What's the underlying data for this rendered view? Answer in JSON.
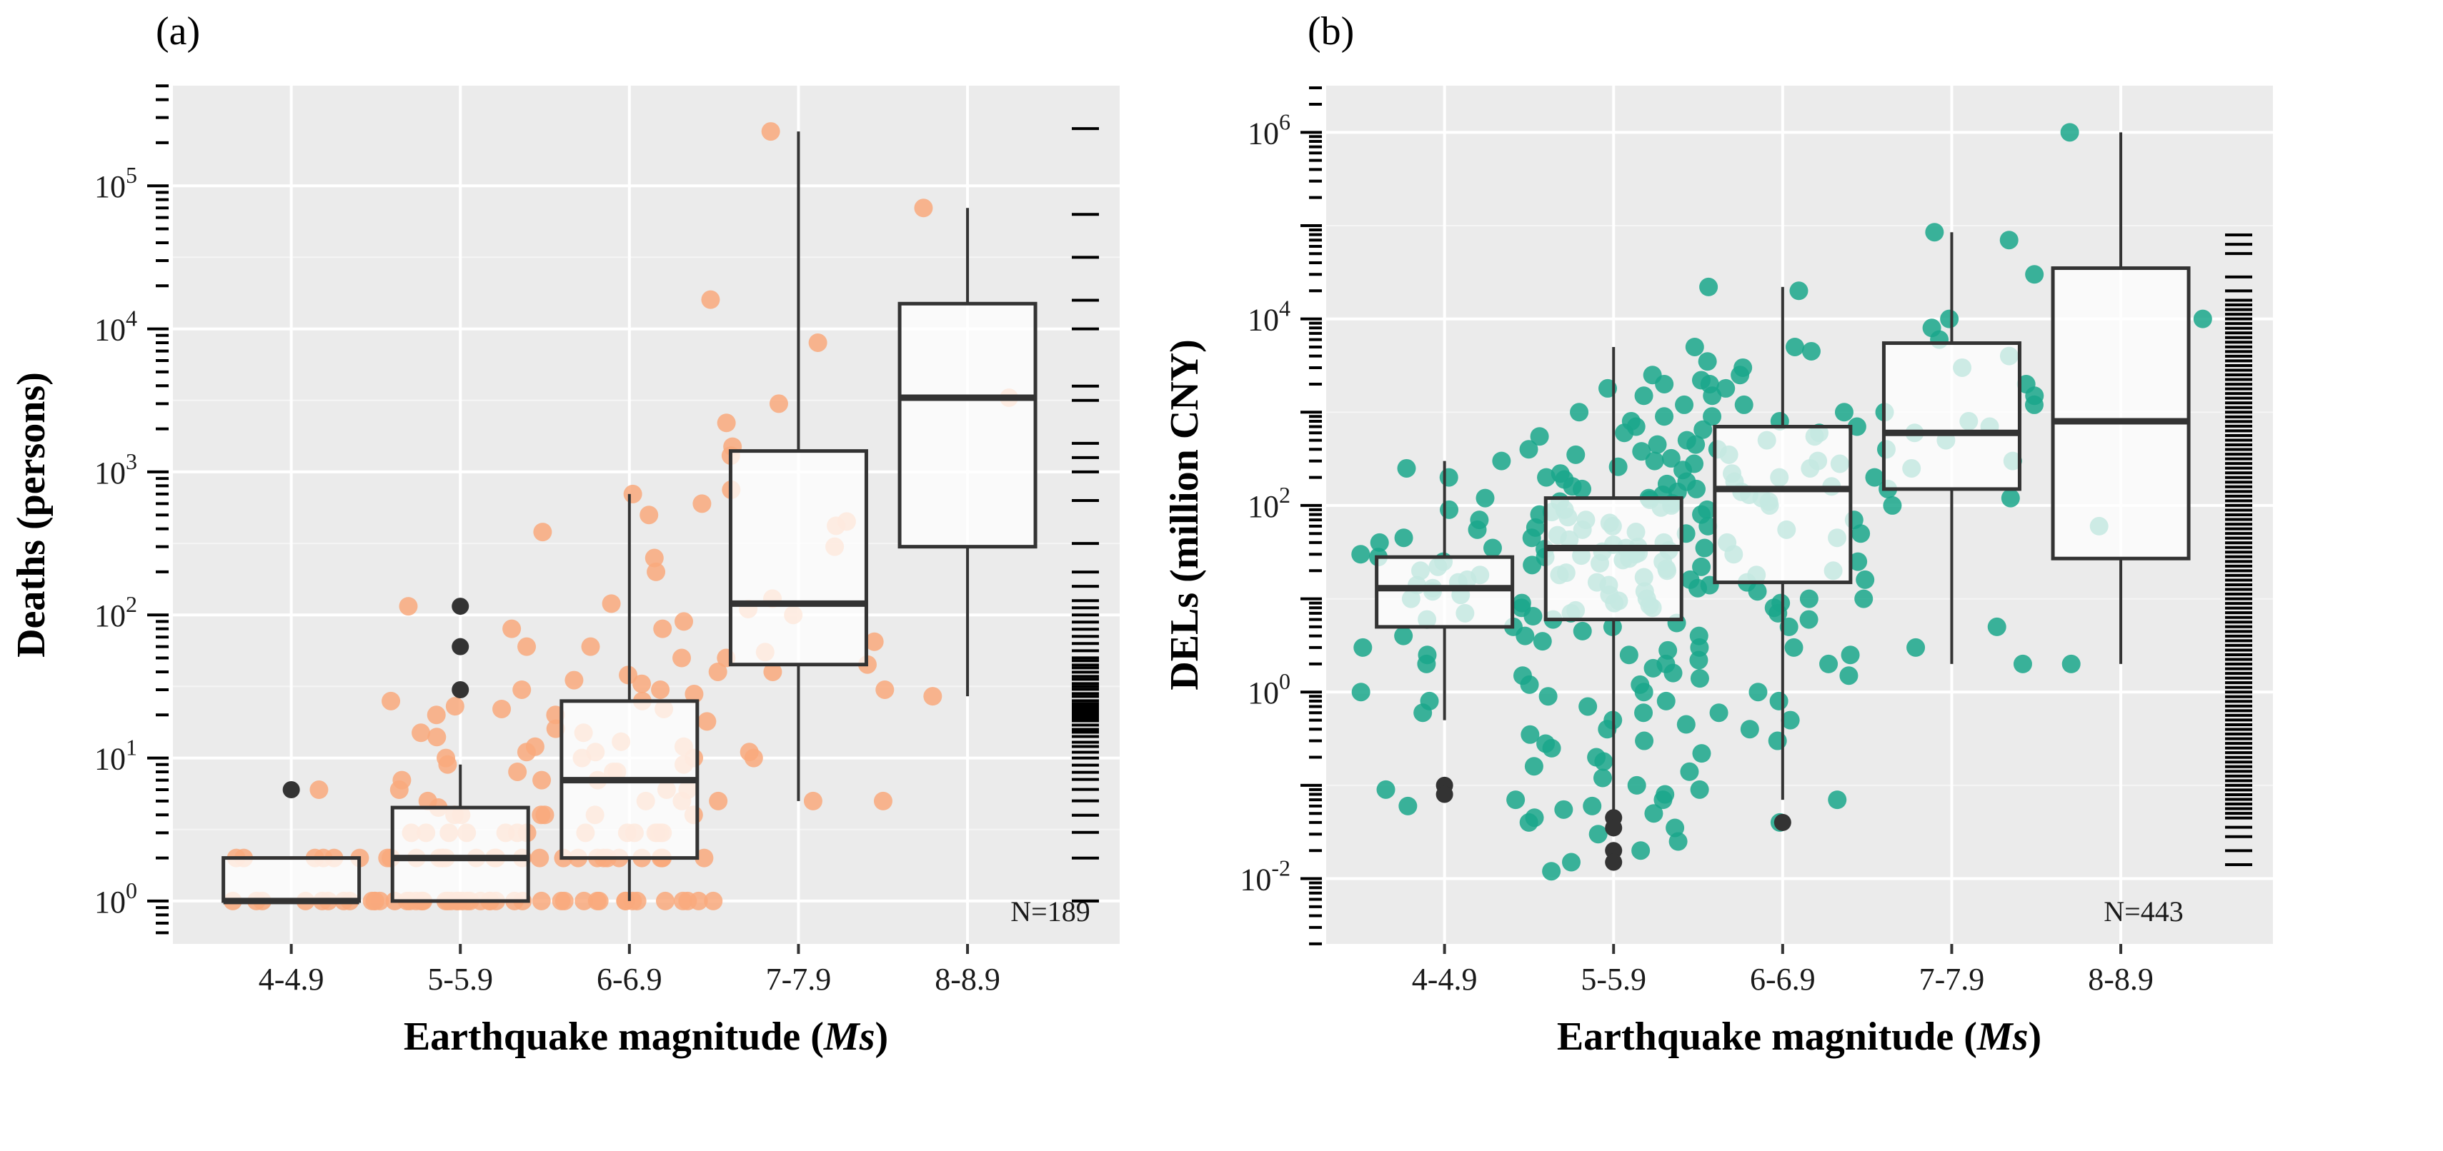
{
  "chart_data": [
    {
      "type": "box",
      "panel_label": "(a)",
      "ylabel": "Deaths (persons)",
      "xlabel_main": "Earthquake magnitude (",
      "xlabel_italic": "Ms",
      "xlabel_close": ")",
      "yscale": "log10",
      "ylim_log10": [
        -0.3,
        5.7
      ],
      "y_ticks": [
        {
          "base": "10",
          "exp": "0",
          "log": 0
        },
        {
          "base": "10",
          "exp": "1",
          "log": 1
        },
        {
          "base": "10",
          "exp": "2",
          "log": 2
        },
        {
          "base": "10",
          "exp": "3",
          "log": 3
        },
        {
          "base": "10",
          "exp": "4",
          "log": 4
        },
        {
          "base": "10",
          "exp": "5",
          "log": 5
        }
      ],
      "categories": [
        "4-4.9",
        "5-5.9",
        "6-6.9",
        "7-7.9",
        "8-8.9"
      ],
      "n_label": "N=189",
      "point_color": "#f9a97d",
      "outlier_color": "#333333",
      "boxes": [
        {
          "q1": 1,
          "median": 1,
          "q3": 2,
          "whisker_low": 1,
          "whisker_high": 2,
          "outliers": [
            6
          ]
        },
        {
          "q1": 1,
          "median": 2,
          "q3": 4.5,
          "whisker_low": 1,
          "whisker_high": 9,
          "outliers": [
            30,
            60,
            115
          ]
        },
        {
          "q1": 2,
          "median": 7,
          "q3": 25,
          "whisker_low": 1,
          "whisker_high": 700,
          "outliers": []
        },
        {
          "q1": 45,
          "median": 120,
          "q3": 1400,
          "whisker_low": 5,
          "whisker_high": 240000,
          "outliers": []
        },
        {
          "q1": 300,
          "median": 3300,
          "q3": 15000,
          "whisker_low": 27,
          "whisker_high": 70000,
          "outliers": []
        }
      ],
      "points": [
        [
          6,
          1,
          2,
          1,
          2,
          1,
          1,
          2,
          1,
          1,
          2,
          1,
          1,
          2,
          1,
          2
        ],
        [
          115,
          80,
          60,
          30,
          25,
          23,
          22,
          20,
          15,
          14,
          12,
          11,
          10,
          9,
          8,
          7,
          6,
          5,
          4.5,
          4,
          4,
          4,
          3,
          3,
          3,
          3,
          3,
          3,
          3,
          2,
          2,
          2,
          2,
          2,
          2,
          2,
          2,
          2,
          2,
          2,
          2,
          2,
          1,
          1,
          1,
          1,
          1,
          1,
          1,
          1,
          1,
          1,
          1,
          1,
          1,
          1,
          1,
          1,
          1,
          1,
          1,
          1,
          1,
          1,
          1,
          1,
          1
        ],
        [
          700,
          600,
          500,
          380,
          250,
          200,
          120,
          90,
          80,
          60,
          50,
          40,
          38,
          35,
          33,
          30,
          28,
          25,
          22,
          20,
          18,
          16,
          15,
          13,
          12,
          11,
          10,
          10,
          9,
          8,
          8,
          7,
          7,
          6,
          6,
          5,
          5,
          5,
          4,
          4,
          4,
          3,
          3,
          3,
          3,
          3,
          3,
          3,
          2,
          2,
          2,
          2,
          2,
          2,
          2,
          2,
          2,
          2,
          2,
          1,
          1,
          1,
          1,
          1,
          1,
          1,
          1,
          1,
          1,
          1,
          1,
          1,
          1
        ],
        [
          240000,
          16000,
          8000,
          3000,
          2200,
          1500,
          1300,
          750,
          450,
          420,
          300,
          130,
          110,
          100,
          65,
          55,
          50,
          45,
          40,
          30,
          11,
          10,
          5,
          5
        ],
        [
          70000,
          3300,
          27
        ]
      ],
      "rug_log10": [
        0.0,
        0.0,
        0.3,
        0.48,
        0.6,
        0.7,
        0.78,
        0.85,
        0.9,
        0.95,
        1.0,
        1.04,
        1.08,
        1.11,
        1.15,
        1.18,
        1.2,
        1.23,
        1.26,
        1.28,
        1.3,
        1.32,
        1.34,
        1.36,
        1.38,
        1.4,
        1.43,
        1.45,
        1.48,
        1.5,
        1.52,
        1.55,
        1.57,
        1.6,
        1.63,
        1.65,
        1.68,
        1.7,
        1.75,
        1.8,
        1.85,
        1.9,
        1.95,
        2.0,
        2.05,
        2.1,
        2.2,
        2.3,
        2.5,
        2.8,
        3.0,
        3.1,
        3.2,
        3.5,
        3.6,
        4.0,
        4.2,
        4.5,
        4.8,
        5.4
      ]
    },
    {
      "type": "box",
      "panel_label": "(b)",
      "ylabel": "DELs (million CNY)",
      "xlabel_main": "Earthquake magnitude (",
      "xlabel_italic": "Ms",
      "xlabel_close": ")",
      "yscale": "log10",
      "ylim_log10": [
        -2.7,
        6.5
      ],
      "y_ticks": [
        {
          "base": "10",
          "exp": "-2",
          "log": -2
        },
        {
          "base": "10",
          "exp": "0",
          "log": 0
        },
        {
          "base": "10",
          "exp": "2",
          "log": 2
        },
        {
          "base": "10",
          "exp": "4",
          "log": 4
        },
        {
          "base": "10",
          "exp": "6",
          "log": 6
        }
      ],
      "categories": [
        "4-4.9",
        "5-5.9",
        "6-6.9",
        "7-7.9",
        "8-8.9"
      ],
      "n_label": "N=443",
      "point_color": "#1aa78b",
      "outlier_color": "#333333",
      "boxes": [
        {
          "q1": 5,
          "median": 13,
          "q3": 28,
          "whisker_low": 0.5,
          "whisker_high": 300,
          "outliers": [
            0.1,
            0.08
          ]
        },
        {
          "q1": 6,
          "median": 35,
          "q3": 120,
          "whisker_low": 0.055,
          "whisker_high": 5000,
          "outliers": [
            0.045,
            0.035,
            0.02,
            0.015
          ]
        },
        {
          "q1": 15,
          "median": 150,
          "q3": 700,
          "whisker_low": 0.07,
          "whisker_high": 22000,
          "outliers": [
            0.04
          ]
        },
        {
          "q1": 150,
          "median": 600,
          "q3": 5500,
          "whisker_low": 2,
          "whisker_high": 85000,
          "outliers": []
        },
        {
          "q1": 27,
          "median": 800,
          "q3": 35000,
          "whisker_low": 2,
          "whisker_high": 1000000,
          "outliers": []
        }
      ],
      "points": [
        [
          300,
          250,
          200,
          120,
          90,
          70,
          55,
          45,
          40,
          35,
          30,
          28,
          25,
          22,
          20,
          18,
          16,
          15,
          14,
          13,
          12,
          11,
          10,
          9,
          8,
          7,
          6,
          5,
          4,
          3,
          2.5,
          2,
          1.5,
          1.2,
          1,
          0.8,
          0.6,
          0.09,
          0.07,
          0.06
        ],
        [
          5000,
          2500,
          2200,
          2000,
          1800,
          1500,
          1200,
          1000,
          900,
          800,
          700,
          600,
          550,
          500,
          450,
          400,
          380,
          350,
          320,
          300,
          280,
          260,
          240,
          220,
          200,
          190,
          180,
          170,
          160,
          150,
          140,
          130,
          120,
          115,
          110,
          105,
          100,
          95,
          90,
          85,
          80,
          75,
          70,
          65,
          60,
          58,
          55,
          52,
          50,
          48,
          45,
          43,
          40,
          38,
          36,
          35,
          34,
          33,
          32,
          31,
          30,
          29,
          28,
          27,
          26,
          25,
          24,
          23,
          22,
          21,
          20,
          19,
          18,
          17,
          16,
          15,
          14,
          13,
          12,
          11,
          10,
          9.5,
          9,
          8.5,
          8,
          7.5,
          7,
          6.5,
          6,
          5.5,
          5,
          4.5,
          4,
          3.5,
          3,
          2.8,
          2.5,
          2.2,
          2,
          1.8,
          1.6,
          1.4,
          1.2,
          1,
          0.9,
          0.8,
          0.7,
          0.6,
          0.5,
          0.45,
          0.4,
          0.35,
          0.3,
          0.28,
          0.25,
          0.22,
          0.2,
          0.18,
          0.16,
          0.14,
          0.12,
          0.1,
          0.09,
          0.08,
          0.07,
          0.06,
          0.055,
          0.05,
          0.045,
          0.04,
          0.035,
          0.03,
          0.025,
          0.02,
          0.015,
          0.012
        ],
        [
          22000,
          20000,
          5000,
          4500,
          3500,
          3000,
          2500,
          2000,
          1800,
          1500,
          1200,
          1000,
          900,
          800,
          700,
          650,
          600,
          550,
          500,
          450,
          400,
          350,
          300,
          280,
          250,
          220,
          200,
          180,
          160,
          150,
          140,
          130,
          120,
          110,
          100,
          90,
          80,
          70,
          60,
          55,
          50,
          45,
          40,
          35,
          30,
          25,
          20,
          18,
          16,
          15,
          14,
          12,
          10,
          9,
          8,
          7,
          6,
          5,
          4,
          3,
          2.5,
          2,
          1.5,
          1,
          0.8,
          0.6,
          0.5,
          0.4,
          0.3,
          0.07,
          0.04
        ],
        [
          85000,
          70000,
          30000,
          10000,
          8000,
          6000,
          4000,
          3000,
          2000,
          1500,
          1200,
          1000,
          800,
          700,
          600,
          500,
          400,
          300,
          250,
          200,
          150,
          120,
          100,
          10,
          5,
          3,
          2
        ],
        [
          1000000,
          10000,
          60,
          2
        ]
      ],
      "rug_log10": [
        -1.85,
        -1.7,
        -1.55,
        -1.45,
        -1.35,
        -1.3,
        -1.25,
        -1.2,
        -1.15,
        -1.1,
        -1.05,
        -1.0,
        -0.95,
        -0.9,
        -0.85,
        -0.8,
        -0.75,
        -0.7,
        -0.65,
        -0.6,
        -0.55,
        -0.5,
        -0.45,
        -0.4,
        -0.35,
        -0.3,
        -0.25,
        -0.2,
        -0.15,
        -0.1,
        -0.05,
        0.0,
        0.05,
        0.1,
        0.15,
        0.2,
        0.25,
        0.3,
        0.35,
        0.4,
        0.45,
        0.5,
        0.55,
        0.6,
        0.65,
        0.7,
        0.75,
        0.8,
        0.85,
        0.9,
        0.95,
        1.0,
        1.05,
        1.1,
        1.15,
        1.2,
        1.25,
        1.3,
        1.35,
        1.4,
        1.45,
        1.5,
        1.55,
        1.6,
        1.65,
        1.7,
        1.75,
        1.8,
        1.85,
        1.9,
        1.95,
        2.0,
        2.05,
        2.1,
        2.15,
        2.2,
        2.25,
        2.3,
        2.35,
        2.4,
        2.45,
        2.5,
        2.55,
        2.6,
        2.65,
        2.7,
        2.75,
        2.8,
        2.85,
        2.9,
        2.95,
        3.0,
        3.05,
        3.1,
        3.15,
        3.2,
        3.25,
        3.3,
        3.35,
        3.4,
        3.45,
        3.5,
        3.55,
        3.6,
        3.65,
        3.7,
        3.75,
        3.8,
        3.85,
        3.9,
        3.95,
        4.0,
        4.05,
        4.1,
        4.15,
        4.2,
        4.3,
        4.45,
        4.7,
        4.8,
        4.9
      ]
    }
  ]
}
